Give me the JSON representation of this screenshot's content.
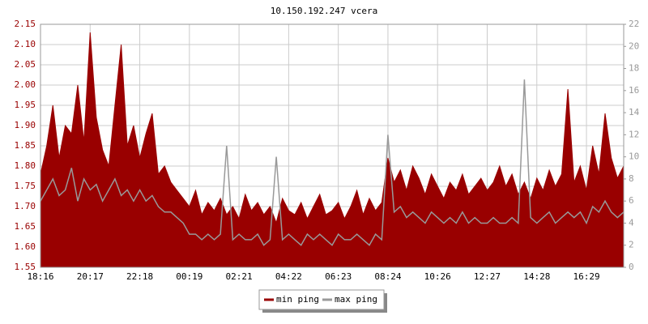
{
  "chart_data": {
    "type": "line",
    "title": "10.150.192.247 vcera",
    "categories": [
      "18:16",
      null,
      null,
      null,
      null,
      null,
      null,
      null,
      "20:17",
      null,
      null,
      null,
      null,
      null,
      null,
      null,
      "22:18",
      null,
      null,
      null,
      null,
      null,
      null,
      null,
      "00:19",
      null,
      null,
      null,
      null,
      null,
      null,
      null,
      "02:21",
      null,
      null,
      null,
      null,
      null,
      null,
      null,
      "04:22",
      null,
      null,
      null,
      null,
      null,
      null,
      null,
      "06:23",
      null,
      null,
      null,
      null,
      null,
      null,
      null,
      "08:24",
      null,
      null,
      null,
      null,
      null,
      null,
      null,
      "10:26",
      null,
      null,
      null,
      null,
      null,
      null,
      null,
      "12:27",
      null,
      null,
      null,
      null,
      null,
      null,
      null,
      "14:28",
      null,
      null,
      null,
      null,
      null,
      null,
      null,
      "16:29",
      null,
      null,
      null,
      null,
      null,
      null
    ],
    "series": [
      {
        "name": "min ping",
        "color": "#990000",
        "values": [
          1.78,
          1.85,
          1.95,
          1.82,
          1.9,
          1.88,
          2.0,
          1.86,
          2.13,
          1.92,
          1.84,
          1.8,
          1.95,
          2.1,
          1.85,
          1.9,
          1.82,
          1.88,
          1.93,
          1.78,
          1.8,
          1.76,
          1.74,
          1.72,
          1.7,
          1.74,
          1.68,
          1.71,
          1.69,
          1.72,
          1.68,
          1.7,
          1.67,
          1.73,
          1.69,
          1.71,
          1.68,
          1.7,
          1.66,
          1.72,
          1.69,
          1.68,
          1.71,
          1.67,
          1.7,
          1.73,
          1.68,
          1.69,
          1.71,
          1.67,
          1.7,
          1.74,
          1.68,
          1.72,
          1.69,
          1.71,
          1.82,
          1.76,
          1.79,
          1.74,
          1.8,
          1.77,
          1.73,
          1.78,
          1.75,
          1.72,
          1.76,
          1.74,
          1.78,
          1.73,
          1.75,
          1.77,
          1.74,
          1.76,
          1.8,
          1.75,
          1.78,
          1.73,
          1.76,
          1.72,
          1.77,
          1.74,
          1.79,
          1.75,
          1.78,
          1.99,
          1.76,
          1.8,
          1.74,
          1.85,
          1.78,
          1.93,
          1.82,
          1.77,
          1.8
        ]
      },
      {
        "name": "max ping",
        "color": "#999999",
        "axis": "y2",
        "values": [
          6,
          7,
          8,
          6.5,
          7,
          9,
          6,
          8,
          7,
          7.5,
          6,
          7,
          8,
          6.5,
          7,
          6,
          7,
          6,
          6.5,
          5.5,
          5,
          5,
          4.5,
          4,
          3,
          3,
          2.5,
          3,
          2.5,
          3,
          11,
          2.5,
          3,
          2.5,
          2.5,
          3,
          2,
          2.5,
          10,
          2.5,
          3,
          2.5,
          2,
          3,
          2.5,
          3,
          2.5,
          2,
          3,
          2.5,
          2.5,
          3,
          2.5,
          2,
          3,
          2.5,
          12,
          5,
          5.5,
          4.5,
          5,
          4.5,
          4,
          5,
          4.5,
          4,
          4.5,
          4,
          5,
          4,
          4.5,
          4,
          4,
          4.5,
          4,
          4,
          4.5,
          4,
          17,
          4.5,
          4,
          4.5,
          5,
          4,
          4.5,
          5,
          4.5,
          5,
          4,
          5.5,
          5,
          6,
          5,
          4.5,
          5
        ]
      }
    ],
    "ylim": [
      1.55,
      2.15
    ],
    "yticks": [
      1.55,
      {
        "value": 1.6,
        "label": "1.60"
      },
      1.65,
      {
        "value": 1.7,
        "label": "1.70"
      },
      1.75,
      {
        "value": 1.8,
        "label": "1.80"
      },
      1.85,
      {
        "value": 1.9,
        "label": "1.90"
      },
      1.95,
      {
        "value": 2.0,
        "label": "2.00"
      },
      2.05,
      {
        "value": 2.1,
        "label": "2.10"
      },
      2.15
    ],
    "y2lim": [
      0,
      22
    ],
    "y2ticks": [
      0,
      2,
      4,
      6,
      8,
      10,
      12,
      14,
      16,
      18,
      20,
      22
    ],
    "grid": true
  }
}
